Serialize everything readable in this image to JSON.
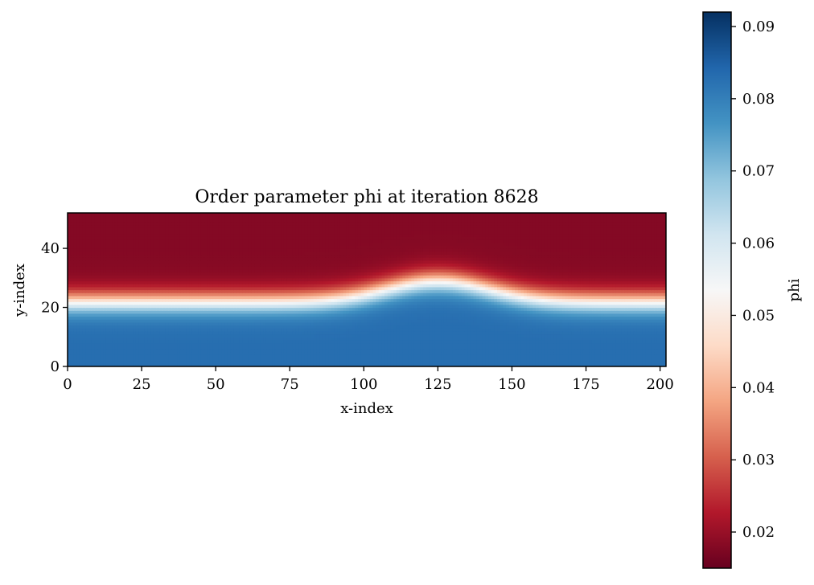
{
  "chart_data": {
    "type": "heatmap",
    "title": "Order parameter phi at iteration 8628",
    "xlabel": "x-index",
    "ylabel": "y-index",
    "xlim": [
      0,
      202
    ],
    "ylim": [
      0,
      52
    ],
    "xticks": [
      0,
      25,
      50,
      75,
      100,
      125,
      150,
      175,
      200
    ],
    "yticks": [
      0,
      20,
      40
    ],
    "colormap": "RdBu",
    "colorbar": {
      "label": "phi",
      "range": [
        0.015,
        0.092
      ],
      "ticks": [
        0.02,
        0.03,
        0.04,
        0.05,
        0.06,
        0.07,
        0.08,
        0.09
      ],
      "tick_labels": [
        "0.02",
        "0.03",
        "0.04",
        "0.05",
        "0.06",
        "0.07",
        "0.08",
        "0.09"
      ]
    },
    "field": {
      "phi_bottom": 0.083,
      "phi_top": 0.018,
      "interface_y_baseline": 22,
      "interface_bump_center_x": 125,
      "interface_bump_height": 7,
      "interface_bump_width": 25,
      "interface_width": 9
    }
  },
  "colors": {
    "colormap_stops": [
      "#67001f",
      "#b2182b",
      "#d6604d",
      "#f4a582",
      "#fddbc7",
      "#f7f7f7",
      "#d1e5f0",
      "#92c5de",
      "#4393c3",
      "#2166ac",
      "#053061"
    ]
  }
}
